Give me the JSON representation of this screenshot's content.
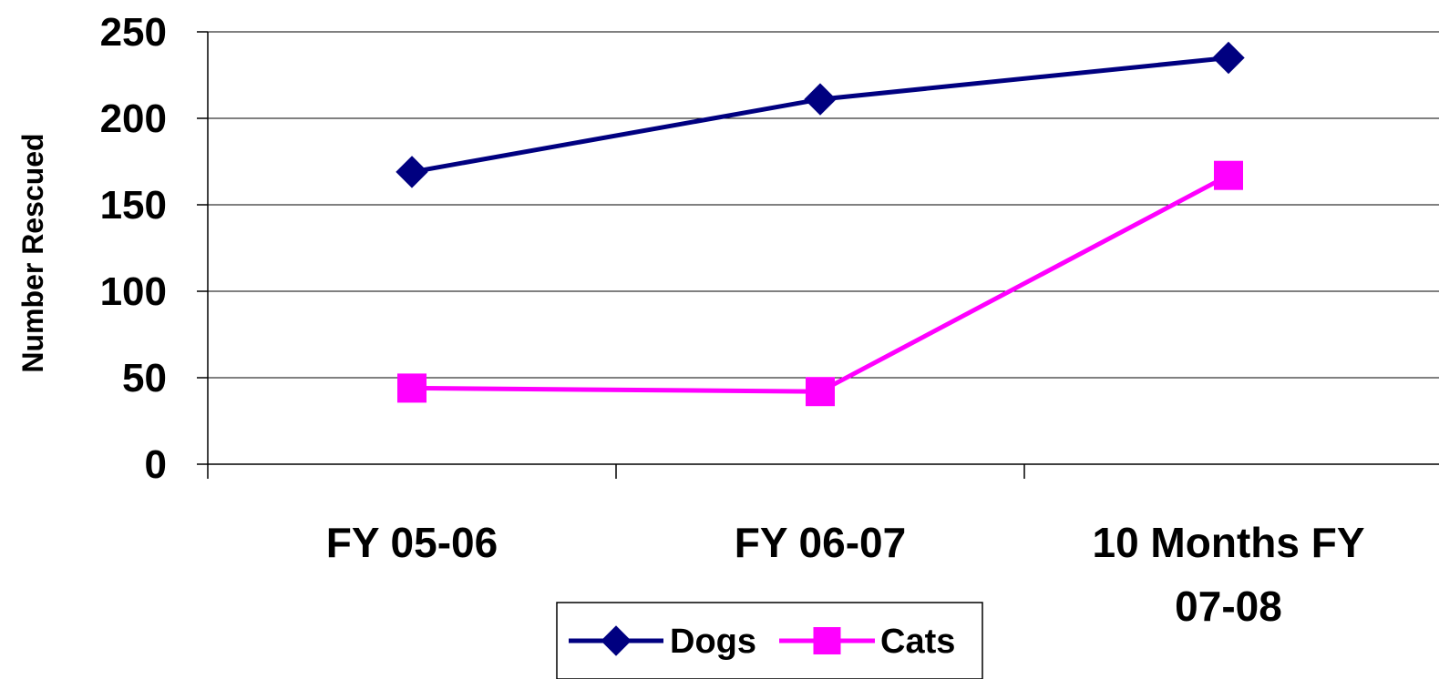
{
  "chart_data": {
    "type": "line",
    "title": "",
    "xlabel": "",
    "ylabel": "Number Rescued",
    "categories": [
      [
        "FY 05-06"
      ],
      [
        "FY 06-07"
      ],
      [
        "10 Months FY",
        "07-08"
      ]
    ],
    "series": [
      {
        "name": "Dogs",
        "values": [
          169,
          211,
          235
        ],
        "color": "#000080",
        "marker": "diamond"
      },
      {
        "name": "Cats",
        "values": [
          44,
          42,
          167
        ],
        "color": "#FF00FF",
        "marker": "square"
      }
    ],
    "ylim": [
      0,
      250
    ],
    "yticks": [
      0,
      50,
      100,
      150,
      200,
      250
    ],
    "grid": "horizontal",
    "legend": "bottom"
  }
}
